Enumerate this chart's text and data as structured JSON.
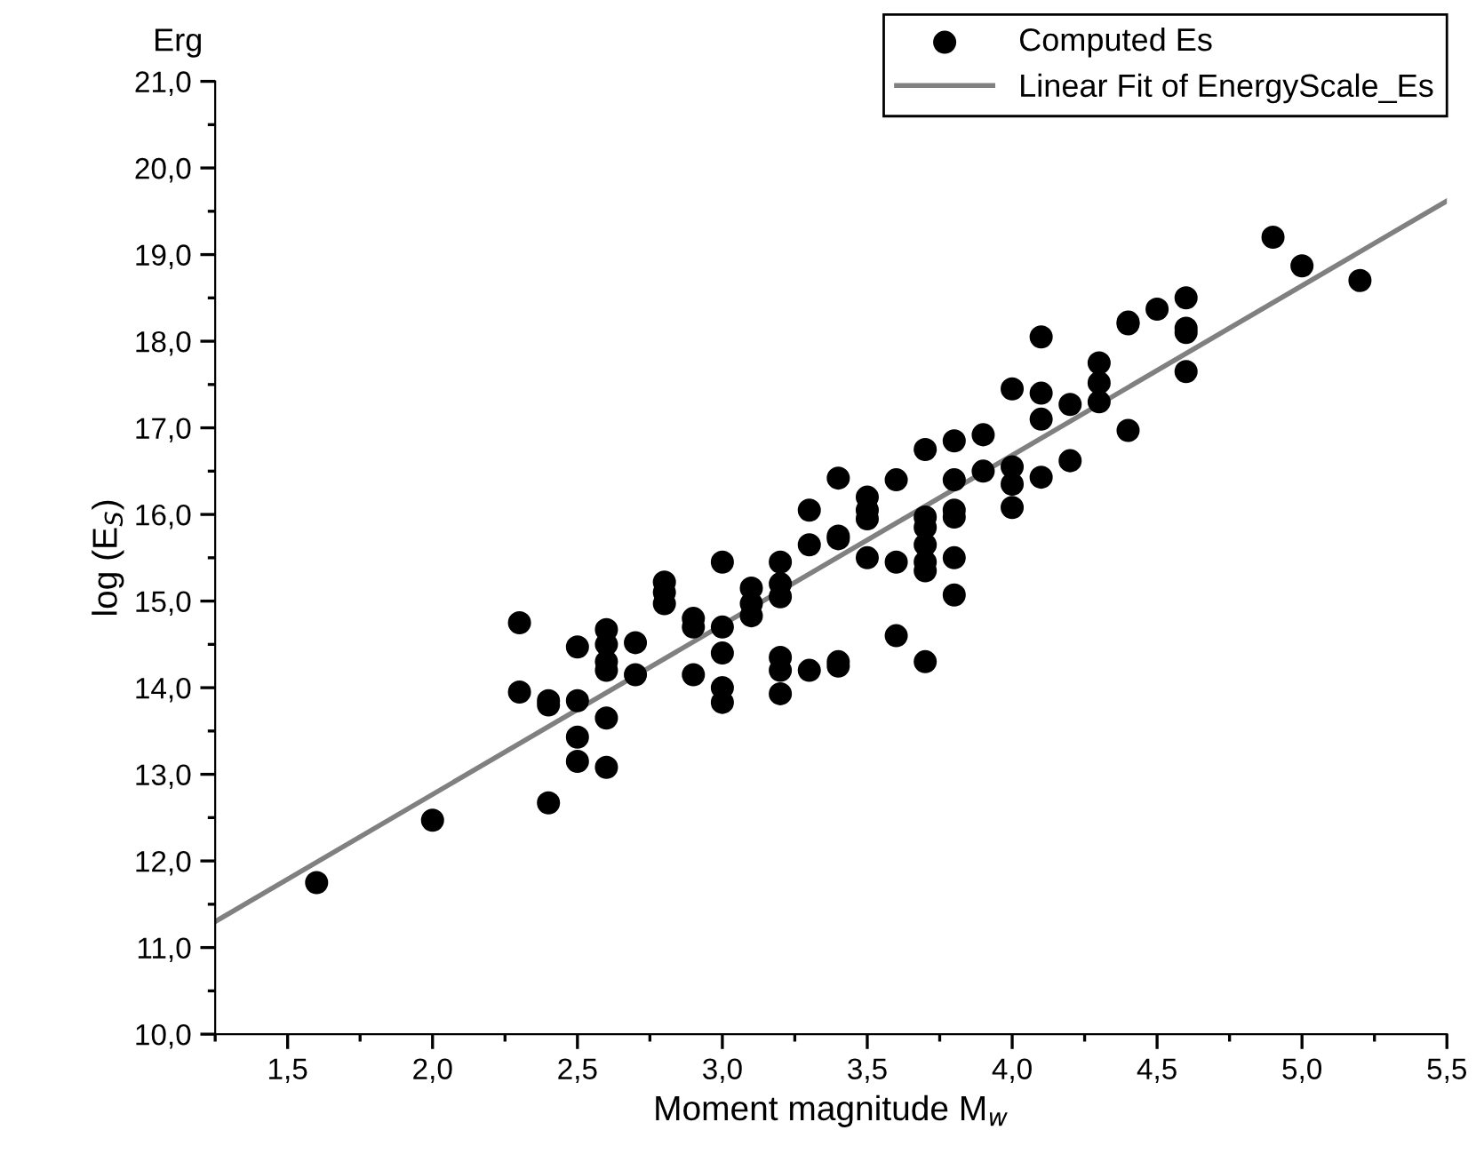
{
  "chart_data": {
    "type": "scatter",
    "xlabel": "Moment magnitude M$_{w}$",
    "ylabel": "log (E$_{S}$)",
    "annotations": [
      "Erg"
    ],
    "xlim": [
      1.25,
      5.5
    ],
    "ylim": [
      10,
      21
    ],
    "xticks": [
      {
        "value": 1.5,
        "label": "1,5"
      },
      {
        "value": 2.0,
        "label": "2,0"
      },
      {
        "value": 2.5,
        "label": "2,5"
      },
      {
        "value": 3.0,
        "label": "3,0"
      },
      {
        "value": 3.5,
        "label": "3,5"
      },
      {
        "value": 4.0,
        "label": "4,0"
      },
      {
        "value": 4.5,
        "label": "4,5"
      },
      {
        "value": 5.0,
        "label": "5,0"
      },
      {
        "value": 5.5,
        "label": "5,5"
      }
    ],
    "yticks": [
      {
        "value": 10,
        "label": "10,0"
      },
      {
        "value": 11,
        "label": "11,0"
      },
      {
        "value": 12,
        "label": "12,0"
      },
      {
        "value": 13,
        "label": "13,0"
      },
      {
        "value": 14,
        "label": "14,0"
      },
      {
        "value": 15,
        "label": "15,0"
      },
      {
        "value": 16,
        "label": "16,0"
      },
      {
        "value": 17,
        "label": "17,0"
      },
      {
        "value": 18,
        "label": "18,0"
      },
      {
        "value": 19,
        "label": "19,0"
      },
      {
        "value": 20,
        "label": "20,0"
      },
      {
        "value": 21,
        "label": "21,0"
      }
    ],
    "grid": false,
    "legend": "top right",
    "series": [
      {
        "name": "Computed Es",
        "color": "#000000",
        "marker": "circle",
        "x": [
          1.6,
          2.0,
          2.3,
          2.3,
          2.4,
          2.4,
          2.4,
          2.5,
          2.5,
          2.5,
          2.5,
          2.6,
          2.6,
          2.6,
          2.6,
          2.6,
          2.6,
          2.7,
          2.7,
          2.8,
          2.8,
          2.8,
          2.9,
          2.9,
          2.9,
          3.0,
          3.0,
          3.0,
          3.0,
          3.0,
          3.1,
          3.1,
          3.1,
          3.2,
          3.2,
          3.2,
          3.2,
          3.2,
          3.2,
          3.3,
          3.3,
          3.3,
          3.4,
          3.4,
          3.4,
          3.4,
          3.4,
          3.5,
          3.5,
          3.5,
          3.5,
          3.6,
          3.6,
          3.6,
          3.7,
          3.7,
          3.7,
          3.7,
          3.7,
          3.7,
          3.7,
          3.8,
          3.8,
          3.8,
          3.8,
          3.8,
          3.8,
          3.9,
          3.9,
          4.0,
          4.0,
          4.0,
          4.0,
          4.1,
          4.1,
          4.1,
          4.1,
          4.2,
          4.2,
          4.3,
          4.3,
          4.3,
          4.4,
          4.4,
          4.4,
          4.5,
          4.6,
          4.6,
          4.6,
          4.6,
          4.9,
          5.0,
          5.2
        ],
        "values": [
          11.75,
          12.47,
          14.75,
          13.95,
          13.85,
          13.8,
          12.67,
          14.47,
          13.85,
          13.43,
          13.15,
          14.67,
          14.5,
          14.3,
          14.2,
          13.65,
          13.08,
          14.52,
          14.15,
          15.22,
          15.1,
          14.97,
          14.8,
          14.7,
          14.15,
          15.45,
          14.7,
          14.4,
          14.0,
          13.83,
          15.15,
          14.97,
          14.83,
          15.45,
          15.2,
          15.05,
          14.35,
          14.2,
          13.93,
          16.05,
          15.65,
          14.2,
          16.42,
          15.75,
          15.72,
          14.3,
          14.25,
          16.2,
          16.05,
          15.95,
          15.5,
          16.4,
          15.45,
          14.6,
          16.75,
          15.97,
          15.85,
          15.65,
          15.45,
          15.35,
          14.3,
          16.85,
          16.4,
          16.05,
          15.97,
          15.5,
          15.07,
          16.92,
          16.5,
          17.45,
          16.55,
          16.35,
          16.08,
          18.05,
          17.4,
          17.1,
          16.43,
          17.27,
          16.62,
          17.75,
          17.52,
          17.3,
          18.22,
          18.2,
          16.97,
          18.37,
          18.5,
          18.15,
          18.1,
          17.65,
          19.2,
          18.87,
          18.7
        ]
      },
      {
        "name": "Linear Fit of EnergyScale_Es",
        "type": "line",
        "color": "#808080",
        "marker": "none",
        "line_style": "solid",
        "x": [
          1.25,
          5.5
        ],
        "values": [
          11.3,
          19.62
        ]
      }
    ]
  }
}
